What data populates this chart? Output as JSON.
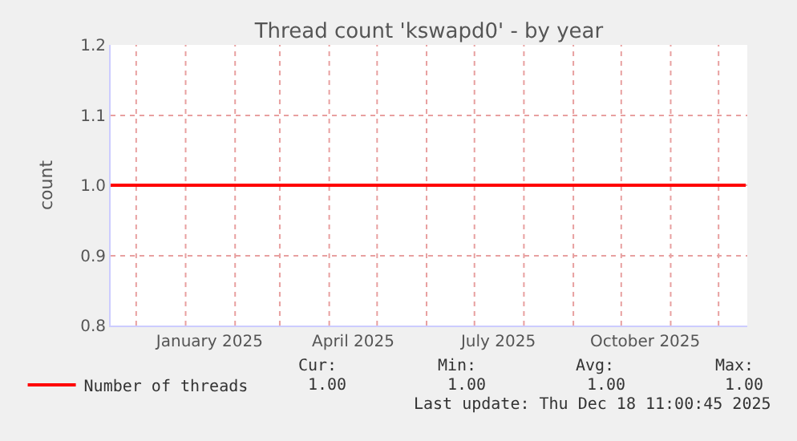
{
  "chart_data": {
    "type": "line",
    "title": "Thread count 'kswapd0' - by year",
    "ylabel": "count",
    "x": [
      "2024-11-15",
      "2025-12-18"
    ],
    "series": [
      {
        "name": "Number of threads",
        "color": "#ff0000",
        "values": [
          1,
          1
        ]
      }
    ],
    "xlim": [
      "2024-11-15",
      "2025-12-19"
    ],
    "xticks": [
      {
        "value": "2024-12-01",
        "label": null
      },
      {
        "value": "2025-01-01",
        "label": null
      },
      {
        "value": "2025-01-16",
        "label": "January 2025"
      },
      {
        "value": "2025-02-01",
        "label": null
      },
      {
        "value": "2025-03-01",
        "label": null
      },
      {
        "value": "2025-04-01",
        "label": null
      },
      {
        "value": "2025-04-16",
        "label": "April 2025"
      },
      {
        "value": "2025-05-01",
        "label": null
      },
      {
        "value": "2025-06-01",
        "label": null
      },
      {
        "value": "2025-07-01",
        "label": null
      },
      {
        "value": "2025-07-16",
        "label": "July 2025"
      },
      {
        "value": "2025-08-01",
        "label": null
      },
      {
        "value": "2025-09-01",
        "label": null
      },
      {
        "value": "2025-10-01",
        "label": null
      },
      {
        "value": "2025-10-16",
        "label": "October 2025"
      },
      {
        "value": "2025-11-01",
        "label": null
      },
      {
        "value": "2025-12-01",
        "label": null
      }
    ],
    "ylim": [
      0.8,
      1.2
    ],
    "yticks": [
      0.8,
      0.9,
      {
        "value": 1,
        "label": "1.0"
      },
      1.1,
      1.2
    ],
    "grid": true,
    "legend": "bottom left",
    "marker": "none",
    "line_style": "solid",
    "annotations": [
      "Cur:",
      "1.00",
      "Min:",
      "1.00",
      "Avg:",
      "1.00",
      "Max:",
      "1.00",
      "Last update: Thu Dec 18 11:00:45 2025"
    ]
  }
}
